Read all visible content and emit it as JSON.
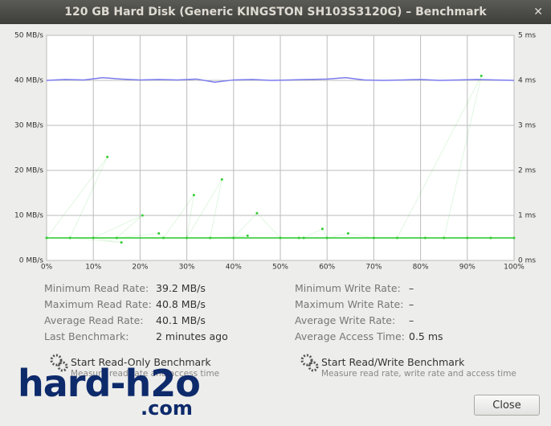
{
  "window": {
    "title": "120 GB Hard Disk (Generic KINGSTON SH103S3120G) – Benchmark",
    "close_button": "Close"
  },
  "chart_data": {
    "type": "line",
    "xlim": [
      0,
      100
    ],
    "xticks": [
      {
        "value": 0,
        "label": "0%"
      },
      {
        "value": 10,
        "label": "10%"
      },
      {
        "value": 20,
        "label": "20%"
      },
      {
        "value": 30,
        "label": "30%"
      },
      {
        "value": 40,
        "label": "40%"
      },
      {
        "value": 50,
        "label": "50%"
      },
      {
        "value": 60,
        "label": "60%"
      },
      {
        "value": 70,
        "label": "70%"
      },
      {
        "value": 80,
        "label": "80%"
      },
      {
        "value": 90,
        "label": "90%"
      },
      {
        "value": 100,
        "label": "100%"
      }
    ],
    "ylim": [
      0,
      50
    ],
    "yticks": [
      {
        "value": 0,
        "label": "0 MB/s"
      },
      {
        "value": 10,
        "label": "10 MB/s"
      },
      {
        "value": 20,
        "label": "20 MB/s"
      },
      {
        "value": 30,
        "label": "30 MB/s"
      },
      {
        "value": 40,
        "label": "40 MB/s"
      },
      {
        "value": 50,
        "label": "50 MB/s"
      }
    ],
    "y2lim": [
      0,
      5
    ],
    "y2ticks": [
      {
        "value": 0,
        "label": "0 ms"
      },
      {
        "value": 1,
        "label": "1 ms"
      },
      {
        "value": 2,
        "label": "2 ms"
      },
      {
        "value": 3,
        "label": "3 ms"
      },
      {
        "value": 4,
        "label": "4 ms"
      },
      {
        "value": 5,
        "label": "5 ms"
      }
    ],
    "grid": true,
    "series": [
      {
        "kind": "line",
        "color": "#7b7bef",
        "x": [
          0,
          4,
          8,
          12,
          16,
          20,
          24,
          28,
          32,
          36,
          40,
          44,
          48,
          52,
          56,
          60,
          64,
          68,
          72,
          76,
          80,
          84,
          88,
          92,
          96,
          100
        ],
        "values": [
          40.0,
          40.2,
          40.1,
          40.6,
          40.3,
          40.1,
          40.2,
          40.1,
          40.3,
          39.6,
          40.1,
          40.2,
          40.0,
          40.1,
          40.2,
          40.3,
          40.6,
          40.1,
          40.0,
          40.1,
          40.2,
          40.0,
          40.1,
          40.2,
          40.1,
          40.0
        ]
      },
      {
        "kind": "scatter",
        "color": "#33cc33",
        "axis": "y2",
        "x": [
          0,
          13,
          5,
          16,
          10,
          20.5,
          15,
          24,
          25,
          31.5,
          30,
          37.5,
          35,
          43,
          40,
          45,
          50,
          54,
          55,
          59,
          60,
          64.5,
          70,
          81,
          75,
          93,
          85,
          90,
          95,
          100
        ],
        "values": [
          0.5,
          2.3,
          0.5,
          0.4,
          0.5,
          1.0,
          0.5,
          0.6,
          0.5,
          1.45,
          0.5,
          1.8,
          0.5,
          0.55,
          0.5,
          1.05,
          0.5,
          0.5,
          0.5,
          0.7,
          0.5,
          0.6,
          0.5,
          0.5,
          0.5,
          4.1,
          0.5,
          0.5,
          0.5,
          0.5
        ]
      }
    ]
  },
  "stats": {
    "left": [
      [
        "Minimum Read Rate:",
        "39.2 MB/s"
      ],
      [
        "Maximum Read Rate:",
        "40.8 MB/s"
      ],
      [
        "Average Read Rate:",
        "40.1 MB/s"
      ],
      [
        "Last Benchmark:",
        "2 minutes ago"
      ]
    ],
    "right": [
      [
        "Minimum Write Rate:",
        "–"
      ],
      [
        "Maximum Write Rate:",
        "–"
      ],
      [
        "Average Write Rate:",
        "–"
      ],
      [
        "Average Access Time:",
        "0.5 ms"
      ]
    ]
  },
  "actions": [
    {
      "title": "Start Read-Only Benchmark",
      "subtitle": "Measure read rate and access time"
    },
    {
      "title": "Start Read/Write Benchmark",
      "subtitle": "Measure read rate, write rate and access time"
    }
  ],
  "watermark": {
    "main": "hard-h2o",
    "suffix": ".com"
  }
}
